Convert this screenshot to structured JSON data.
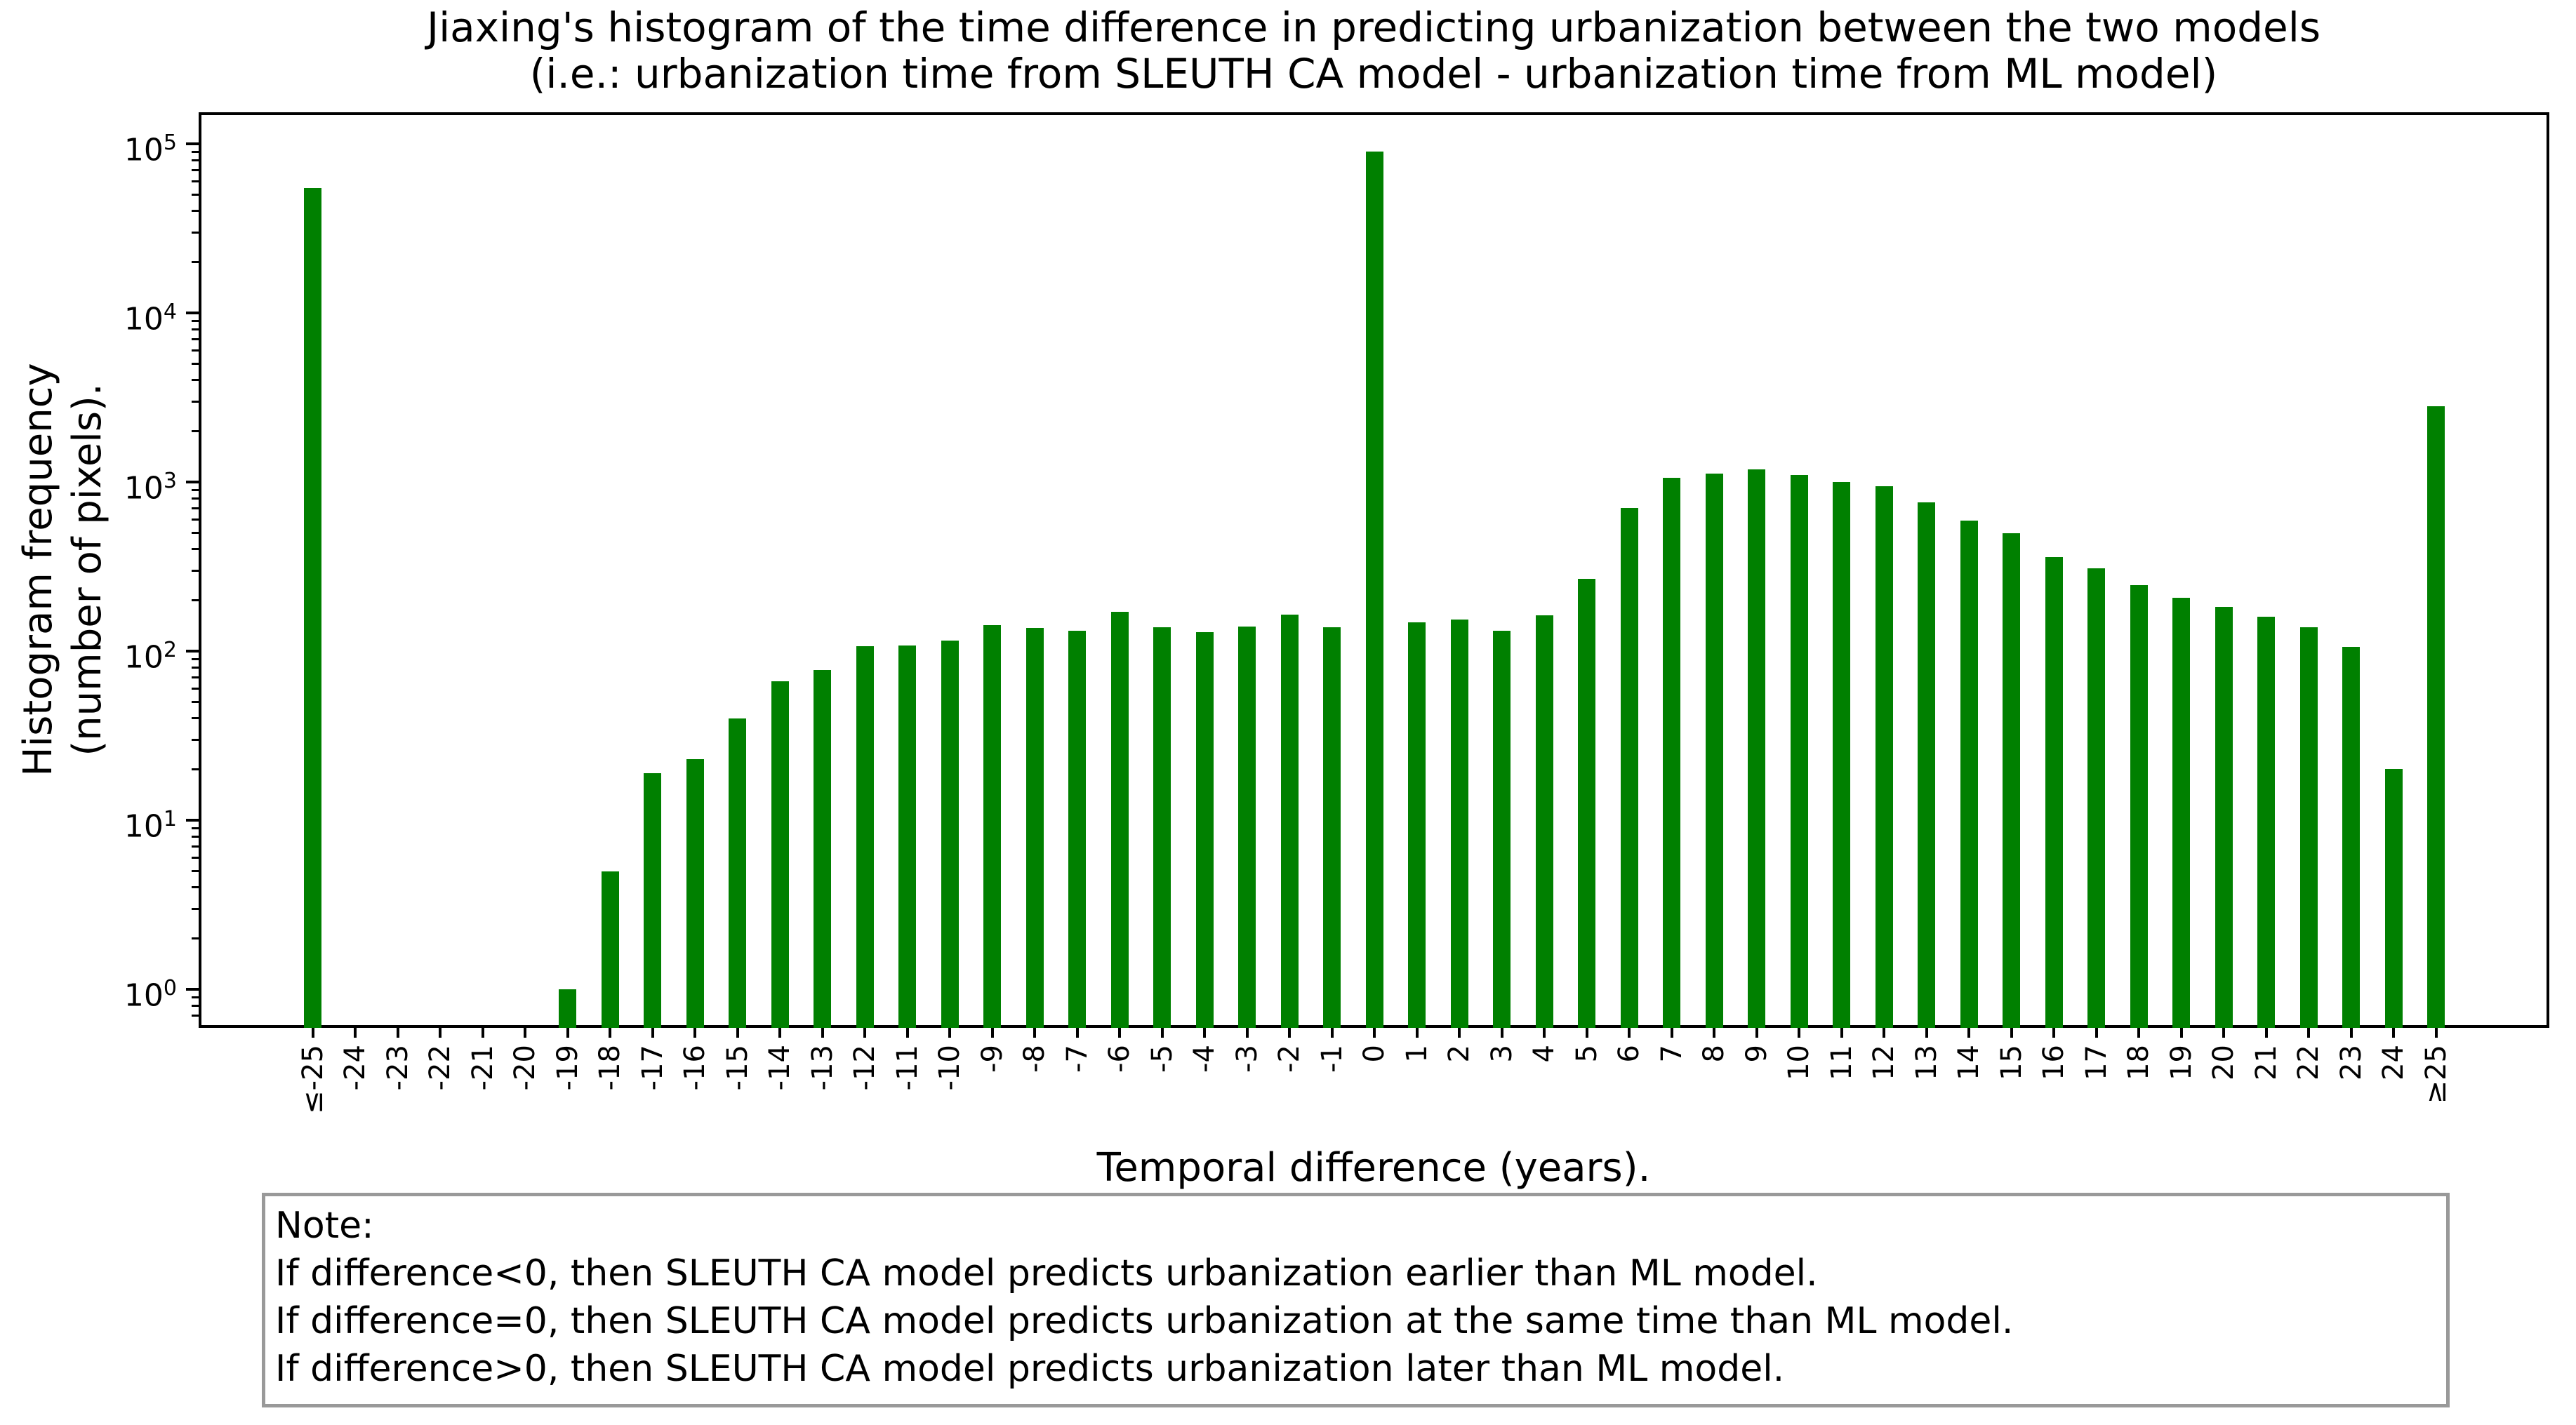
{
  "figure": {
    "title_line1": "Jiaxing's histogram of the time difference in predicting urbanization between the two models",
    "title_line2": "(i.e.: urbanization time from SLEUTH CA model - urbanization time from ML model)"
  },
  "chart_data": {
    "type": "bar",
    "title": "Jiaxing's histogram of the time difference in predicting urbanization between the two models (i.e.: urbanization time from SLEUTH CA model - urbanization time from ML model)",
    "xlabel": "Temporal difference (years).",
    "ylabel_line1": "Histogram frequency",
    "ylabel_line2": "(number of pixels).",
    "y_scale": "log",
    "ylim": [
      0.56,
      150000
    ],
    "y_tick_exponents": [
      0,
      1,
      2,
      3,
      4,
      5
    ],
    "grid": false,
    "legend": null,
    "bar_color": "#008000",
    "categories": [
      "≤-25",
      "-24",
      "-23",
      "-22",
      "-21",
      "-20",
      "-19",
      "-18",
      "-17",
      "-16",
      "-15",
      "-14",
      "-13",
      "-12",
      "-11",
      "-10",
      "-9",
      "-8",
      "-7",
      "-6",
      "-5",
      "-4",
      "-3",
      "-2",
      "-1",
      "0",
      "1",
      "2",
      "3",
      "4",
      "5",
      "6",
      "7",
      "8",
      "9",
      "10",
      "11",
      "12",
      "13",
      "14",
      "15",
      "16",
      "17",
      "18",
      "19",
      "20",
      "21",
      "22",
      "23",
      "24",
      "≥25"
    ],
    "values": [
      55000,
      0,
      0,
      0,
      0,
      0,
      1,
      5,
      19,
      23,
      40,
      66,
      77,
      107,
      108,
      115,
      142,
      137,
      132,
      171,
      138,
      129,
      140,
      164,
      138,
      90000,
      148,
      154,
      132,
      163,
      267,
      700,
      1060,
      1120,
      1190,
      1100,
      1000,
      945,
      760,
      590,
      500,
      360,
      310,
      245,
      207,
      182,
      160,
      138,
      106,
      20,
      2800
    ]
  },
  "note": {
    "border_color": "#999999",
    "lines": [
      "Note:",
      "If difference<0, then SLEUTH CA model predicts urbanization earlier than ML model.",
      "If difference=0, then SLEUTH CA model predicts urbanization at the same time than ML model.",
      "If difference>0, then SLEUTH CA model predicts urbanization later than ML model."
    ]
  }
}
